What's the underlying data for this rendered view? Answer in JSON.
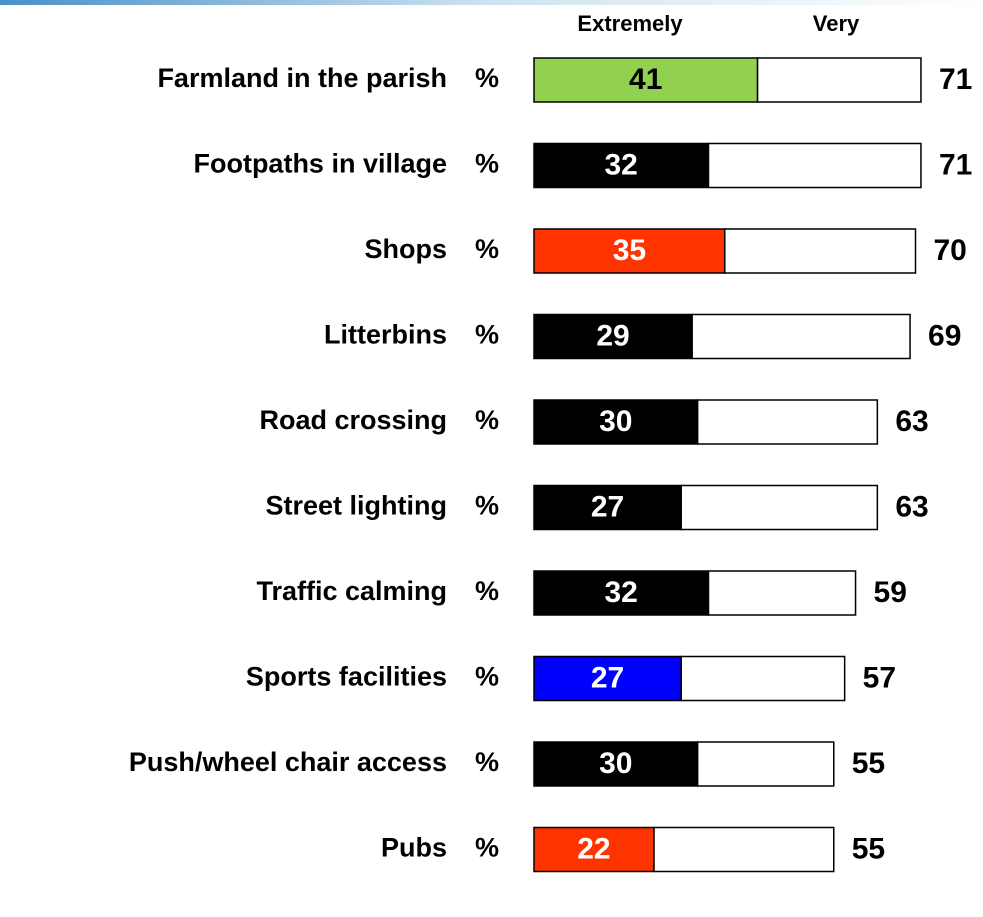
{
  "chart_data": {
    "type": "stacked-bar-horizontal",
    "categories": [
      "Farmland in the parish",
      "Footpaths in village",
      "Shops",
      "Litterbins",
      "Road crossing",
      "Street lighting",
      "Traffic calming",
      "Sports facilities",
      "Push/wheel chair access",
      "Pubs"
    ],
    "unit_label": "%",
    "series": [
      {
        "name": "Extremely",
        "colors": [
          "#92d050",
          "#000000",
          "#ff3300",
          "#000000",
          "#000000",
          "#000000",
          "#000000",
          "#0000ff",
          "#000000",
          "#ff3300"
        ],
        "values": [
          41,
          32,
          35,
          29,
          30,
          27,
          32,
          27,
          30,
          22
        ]
      },
      {
        "name": "Very",
        "color": "#ffffff",
        "values": [
          30,
          39,
          35,
          40,
          33,
          36,
          27,
          30,
          25,
          33
        ]
      }
    ],
    "totals": [
      71,
      71,
      70,
      69,
      63,
      63,
      59,
      57,
      55,
      55
    ],
    "xlim": [
      0,
      100
    ]
  }
}
